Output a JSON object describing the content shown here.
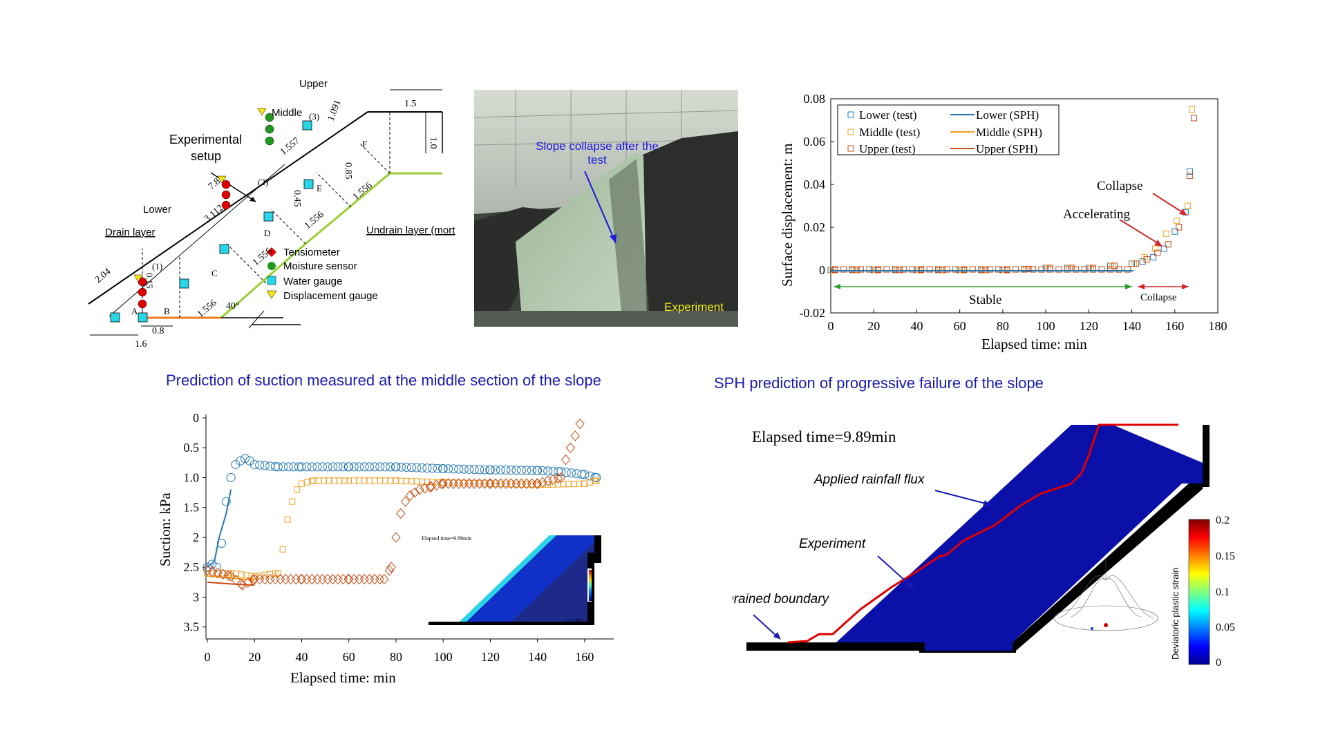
{
  "setup": {
    "title_line1": "Experimental",
    "title_line2": "setup",
    "labels": {
      "upper": "Upper",
      "middle": "Middle",
      "lower": "Lower",
      "drain": "Drain layer",
      "undrain": "Undrain layer (mort"
    },
    "dims": {
      "d15": "1.5",
      "d10": "1.0",
      "d1091": "1.091",
      "d1557": "1.557",
      "d085": "0.85",
      "d78": "7.8",
      "d3112": "3.112",
      "d045": "0.45",
      "d204": "2.04",
      "d015": "0.15",
      "d1556a": "1.556",
      "d1556b": "1.556",
      "d1556c": "1.556",
      "d1556d": "1.556",
      "d08": "0.8",
      "d16": "1.6",
      "angle": "40°"
    },
    "points": {
      "a": "A",
      "b": "B",
      "c": "C",
      "d": "D",
      "e": "E",
      "f": "F"
    },
    "markers": {
      "m1": "(1)",
      "m2": "(2)",
      "m3": "(3)"
    },
    "legend": [
      "Tensiometer",
      "Moisture sensor",
      "Water gauge",
      "Displacement gauge"
    ],
    "colors": {
      "tensiometer": "#e00000",
      "moisture": "#1f9a1f",
      "water": "#27d7e8",
      "displacement": "#f4e60e",
      "slope": "#9acd32",
      "drain": "#f07820"
    }
  },
  "photo": {
    "caption": "Slope collapse after the test",
    "label": "Experiment"
  },
  "suction_title": "Prediction of suction measured at the middle section of the slope",
  "sph_title": "SPH prediction of progressive failure of the slope",
  "displacement_chart": {
    "xlabel": "Elapsed time: min",
    "ylabel": "Surface displacement: m",
    "xticks": [
      "0",
      "20",
      "40",
      "60",
      "80",
      "100",
      "120",
      "140",
      "160",
      "180"
    ],
    "yticks": [
      "0.08",
      "0.06",
      "0.04",
      "0.02",
      "0",
      "-0.02"
    ],
    "legend": [
      "Lower (test)",
      "Middle (test)",
      "Upper (test)",
      "Lower (SPH)",
      "Middle (SPH)",
      "Upper (SPH)"
    ],
    "annotations": {
      "collapse": "Collapse",
      "accelerating": "Accelerating",
      "stable": "Stable",
      "collapse_small": "Collapse"
    }
  },
  "suction_chart": {
    "xlabel": "Elapsed time: min",
    "ylabel": "Suction: kPa",
    "xticks": [
      "0",
      "20",
      "40",
      "60",
      "80",
      "100",
      "120",
      "140",
      "160"
    ],
    "yticks": [
      "0",
      "0.5",
      "1.0",
      "1.5",
      "2",
      "2.5",
      "3",
      "3.5"
    ],
    "inset_label": "Elapsed time=9.89min",
    "inset_unit": "p_l: kPa"
  },
  "sph": {
    "time_label": "Elapsed time=9.89min",
    "rainfall": "Applied rainfall flux",
    "experiment": "Experiment",
    "drained": "Drained boundary",
    "colorbar_title": "Deviatoric plastic strain",
    "colorbar_ticks": [
      "0.2",
      "0.15",
      "0.1",
      "0.05",
      "0"
    ]
  },
  "chart_data": [
    {
      "type": "scatter",
      "title": "",
      "xlabel": "Elapsed time: min",
      "ylabel": "Surface displacement: m",
      "xlim": [
        0,
        180
      ],
      "ylim": [
        -0.02,
        0.08
      ],
      "series": [
        {
          "name": "Lower (test)",
          "x": [
            0,
            10,
            20,
            30,
            40,
            50,
            60,
            70,
            80,
            90,
            100,
            110,
            120,
            130,
            140,
            145,
            150,
            155,
            160,
            165,
            167
          ],
          "y": [
            0,
            0,
            0,
            0,
            0,
            0,
            0,
            0,
            0,
            0.0005,
            0.001,
            0.001,
            0.001,
            0.002,
            0.003,
            0.004,
            0.006,
            0.01,
            0.018,
            0.027,
            0.046
          ]
        },
        {
          "name": "Middle (test)",
          "x": [
            0,
            10,
            20,
            30,
            40,
            50,
            60,
            70,
            80,
            90,
            100,
            110,
            120,
            130,
            140,
            145,
            150,
            155,
            160,
            165,
            167
          ],
          "y": [
            0,
            0,
            0,
            0,
            0,
            0,
            0,
            0,
            0,
            0.0005,
            0.001,
            0.001,
            0.001,
            0.002,
            0.003,
            0.006,
            0.01,
            0.017,
            0.023,
            0.03,
            0.075
          ]
        },
        {
          "name": "Upper (test)",
          "x": [
            0,
            10,
            20,
            30,
            40,
            50,
            60,
            70,
            80,
            90,
            100,
            110,
            120,
            130,
            140,
            145,
            150,
            155,
            160,
            165,
            167
          ],
          "y": [
            0,
            0,
            0,
            0,
            0,
            0,
            0,
            0,
            0,
            0.0005,
            0.001,
            0.001,
            0.001,
            0.002,
            0.003,
            0.005,
            0.008,
            0.012,
            0.02,
            0.044,
            0.071
          ]
        },
        {
          "name": "Lower (SPH)",
          "x": [
            0,
            140
          ],
          "y": [
            0,
            0
          ]
        },
        {
          "name": "Middle (SPH)",
          "x": [
            0,
            140
          ],
          "y": [
            0,
            0
          ]
        },
        {
          "name": "Upper (SPH)",
          "x": [
            0,
            140
          ],
          "y": [
            0,
            0
          ]
        }
      ]
    },
    {
      "type": "scatter",
      "title": "Prediction of suction measured at the middle section of the slope",
      "xlabel": "Elapsed time: min",
      "ylabel": "Suction: kPa",
      "xlim": [
        0,
        170
      ],
      "ylim": [
        3.7,
        0
      ],
      "series": [
        {
          "name": "Lower (test)",
          "x": [
            0,
            2,
            4,
            6,
            8,
            10,
            12,
            14,
            16,
            18,
            20,
            30,
            40,
            60,
            80,
            100,
            120,
            140,
            150,
            160,
            165
          ],
          "y": [
            2.5,
            2.45,
            2.5,
            2.1,
            1.4,
            1.0,
            0.78,
            0.72,
            0.68,
            0.72,
            0.78,
            0.82,
            0.82,
            0.82,
            0.82,
            0.85,
            0.87,
            0.88,
            0.9,
            0.95,
            1.0
          ]
        },
        {
          "name": "Middle (test)",
          "x": [
            0,
            10,
            20,
            30,
            32,
            34,
            36,
            38,
            40,
            45,
            60,
            80,
            100,
            120,
            140,
            160,
            165
          ],
          "y": [
            2.6,
            2.6,
            2.65,
            2.6,
            2.2,
            1.7,
            1.4,
            1.2,
            1.1,
            1.05,
            1.05,
            1.05,
            1.08,
            1.1,
            1.12,
            1.1,
            1.05
          ]
        },
        {
          "name": "Upper (test)",
          "x": [
            0,
            10,
            15,
            20,
            40,
            60,
            75,
            78,
            80,
            82,
            84,
            86,
            88,
            90,
            95,
            100,
            120,
            140,
            150,
            152,
            154,
            156,
            158
          ],
          "y": [
            2.55,
            2.65,
            2.8,
            2.7,
            2.7,
            2.7,
            2.7,
            2.5,
            2.0,
            1.6,
            1.4,
            1.3,
            1.25,
            1.2,
            1.15,
            1.1,
            1.1,
            1.1,
            1.0,
            0.7,
            0.5,
            0.3,
            0.1
          ]
        },
        {
          "name": "Lower (SPH)",
          "x": [
            0,
            3,
            5,
            8,
            10
          ],
          "y": [
            2.5,
            2.4,
            2.0,
            1.6,
            1.2
          ]
        },
        {
          "name": "Middle (SPH)",
          "x": [
            0,
            10,
            20
          ],
          "y": [
            2.65,
            2.68,
            2.72
          ]
        },
        {
          "name": "Upper (SPH)",
          "x": [
            0,
            10,
            20
          ],
          "y": [
            2.75,
            2.78,
            2.8
          ]
        }
      ]
    },
    {
      "type": "heatmap",
      "title": "SPH prediction of progressive failure of the slope",
      "xlabel": "",
      "ylabel": "Deviatoric plastic strain",
      "colorbar_ticks": [
        0.2,
        0.15,
        0.1,
        0.05,
        0
      ]
    }
  ]
}
